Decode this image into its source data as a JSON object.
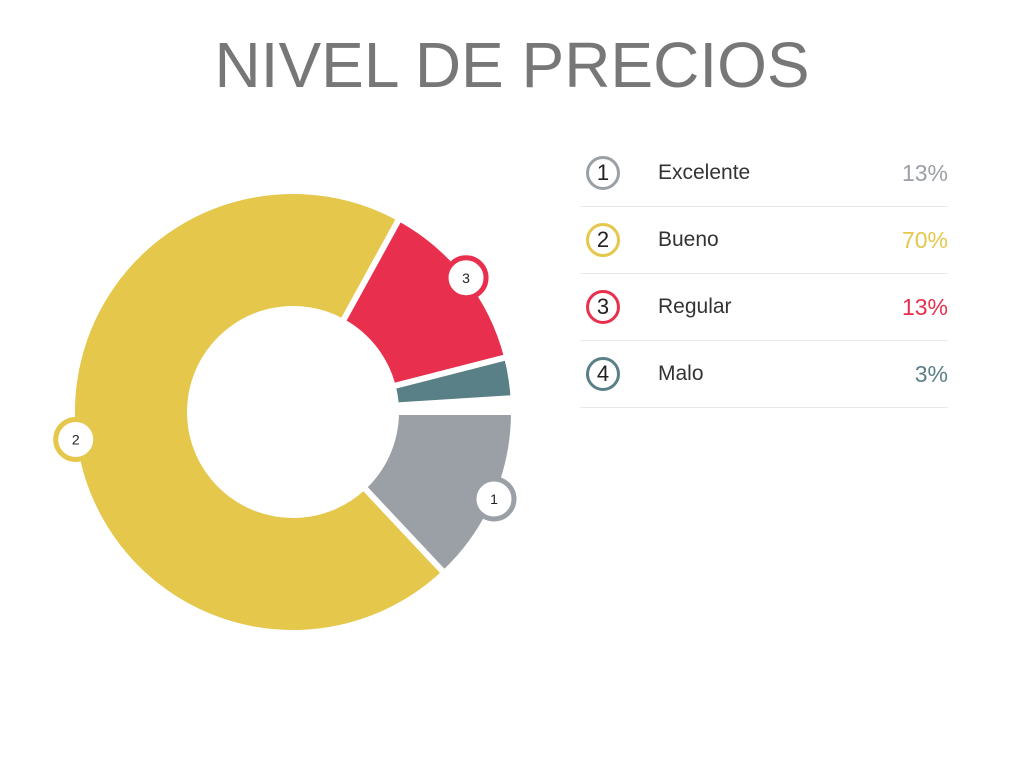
{
  "title": "NIVEL DE PRECIOS",
  "chart_data": {
    "type": "pie",
    "variant": "donut",
    "categories": [
      "Excelente",
      "Bueno",
      "Regular",
      "Malo"
    ],
    "labels": [
      "1",
      "2",
      "3",
      "4"
    ],
    "values": [
      13,
      70,
      13,
      3
    ],
    "value_labels": [
      "13%",
      "70%",
      "13%",
      "3%"
    ],
    "colors": [
      "#9aa0a5",
      "#e4c74b",
      "#e8304e",
      "#5a8087"
    ]
  }
}
